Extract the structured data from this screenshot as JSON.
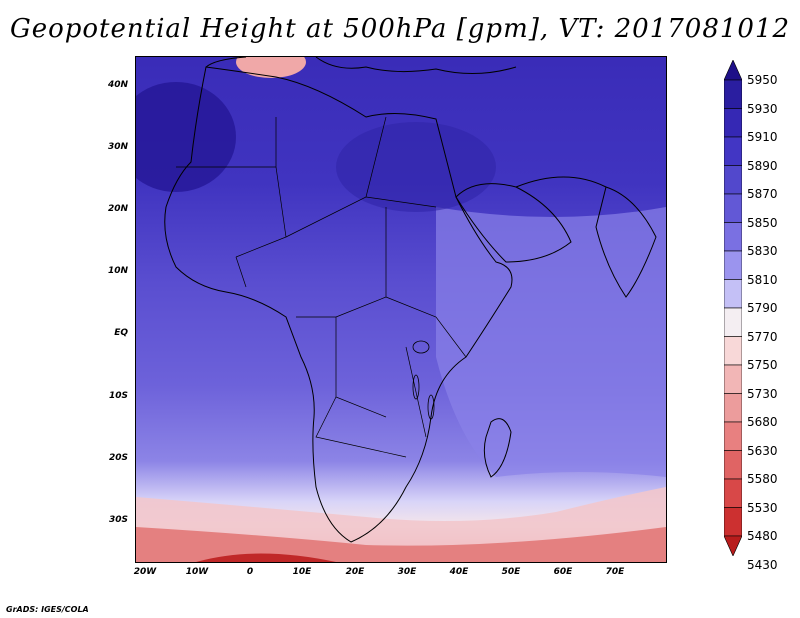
{
  "title": "Geopotential Height at 500hPa [gpm], VT: 2017081012",
  "credit": "GrADS: IGES/COLA",
  "map": {
    "lat_labels": [
      "40N",
      "30N",
      "20N",
      "10N",
      "EQ",
      "10S",
      "20S",
      "30S"
    ],
    "lon_labels": [
      "20W",
      "10W",
      "0",
      "10E",
      "20E",
      "30E",
      "40E",
      "50E",
      "60E",
      "70E"
    ]
  },
  "colorbar": {
    "levels": [
      "5950",
      "5930",
      "5910",
      "5890",
      "5870",
      "5850",
      "5830",
      "5810",
      "5790",
      "5770",
      "5750",
      "5730",
      "5680",
      "5630",
      "5580",
      "5530",
      "5480",
      "5430"
    ],
    "colors": [
      "#1e1088",
      "#2a1ea0",
      "#3528b4",
      "#4236c4",
      "#5248cc",
      "#6258d6",
      "#7a70e2",
      "#9b94ee",
      "#c4c0f6",
      "#f4eef2",
      "#f8d8d8",
      "#f2b6b6",
      "#ec9c9c",
      "#e88080",
      "#e06464",
      "#d84848",
      "#cc3030",
      "#b81c1c"
    ]
  }
}
